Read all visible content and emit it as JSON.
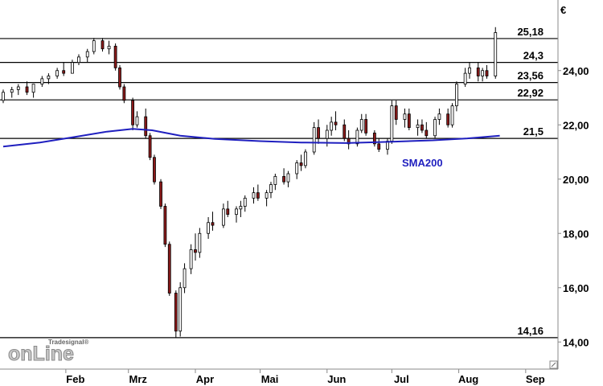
{
  "chart_data": {
    "type": "candlestick",
    "currency": "€",
    "y_range": [
      13.0,
      26.6
    ],
    "y_ticks": [
      "14,00",
      "16,00",
      "18,00",
      "20,00",
      "22,00",
      "24,00"
    ],
    "y_tick_values": [
      14,
      16,
      18,
      20,
      22,
      24
    ],
    "x_months": [
      {
        "label": "Feb",
        "date": "2020-02-01"
      },
      {
        "label": "Mrz",
        "date": "2020-03-01"
      },
      {
        "label": "Apr",
        "date": "2020-04-01"
      },
      {
        "label": "Mai",
        "date": "2020-05-01"
      },
      {
        "label": "Jun",
        "date": "2020-06-01"
      },
      {
        "label": "Jul",
        "date": "2020-07-01"
      },
      {
        "label": "Aug",
        "date": "2020-08-01"
      },
      {
        "label": "Sep",
        "date": "2020-09-01"
      }
    ],
    "x_range": [
      "2020-01-03",
      "2020-09-10"
    ],
    "levels": [
      {
        "label": "25,18",
        "value": 25.18
      },
      {
        "label": "24,3",
        "value": 24.3
      },
      {
        "label": "23,56",
        "value": 23.56
      },
      {
        "label": "22,92",
        "value": 22.92
      },
      {
        "label": "21,5",
        "value": 21.5
      },
      {
        "label": "14,16",
        "value": 14.16
      }
    ],
    "series": [
      {
        "name": "SMA200",
        "color": "#1f1fbf"
      }
    ],
    "sma200": [
      [
        "2020-01-03",
        21.2
      ],
      [
        "2020-01-20",
        21.35
      ],
      [
        "2020-02-05",
        21.55
      ],
      [
        "2020-02-20",
        21.75
      ],
      [
        "2020-03-03",
        21.85
      ],
      [
        "2020-03-12",
        21.8
      ],
      [
        "2020-03-25",
        21.6
      ],
      [
        "2020-04-10",
        21.48
      ],
      [
        "2020-05-01",
        21.4
      ],
      [
        "2020-05-20",
        21.35
      ],
      [
        "2020-06-10",
        21.33
      ],
      [
        "2020-07-01",
        21.38
      ],
      [
        "2020-07-20",
        21.43
      ],
      [
        "2020-08-05",
        21.5
      ],
      [
        "2020-08-20",
        21.6
      ]
    ],
    "candles": [
      [
        "2020-01-03",
        22.9,
        23.3,
        22.8,
        23.2
      ],
      [
        "2020-01-07",
        23.2,
        23.4,
        23.0,
        23.3
      ],
      [
        "2020-01-10",
        23.3,
        23.5,
        23.1,
        23.4
      ],
      [
        "2020-01-14",
        23.4,
        23.6,
        23.1,
        23.2
      ],
      [
        "2020-01-17",
        23.2,
        23.5,
        23.0,
        23.5
      ],
      [
        "2020-01-21",
        23.5,
        23.8,
        23.4,
        23.7
      ],
      [
        "2020-01-24",
        23.7,
        23.9,
        23.5,
        23.8
      ],
      [
        "2020-01-28",
        23.8,
        24.1,
        23.7,
        24.0
      ],
      [
        "2020-01-31",
        24.0,
        24.3,
        23.8,
        23.9
      ],
      [
        "2020-02-04",
        23.9,
        24.4,
        23.9,
        24.3
      ],
      [
        "2020-02-07",
        24.3,
        24.6,
        24.2,
        24.5
      ],
      [
        "2020-02-11",
        24.5,
        24.8,
        24.3,
        24.7
      ],
      [
        "2020-02-14",
        24.7,
        25.2,
        24.6,
        25.1
      ],
      [
        "2020-02-18",
        25.1,
        25.2,
        24.7,
        24.8
      ],
      [
        "2020-02-21",
        24.8,
        25.1,
        24.6,
        24.9
      ],
      [
        "2020-02-24",
        24.9,
        25.0,
        24.0,
        24.1
      ],
      [
        "2020-02-26",
        24.1,
        24.2,
        23.3,
        23.4
      ],
      [
        "2020-02-28",
        23.4,
        23.5,
        22.8,
        22.9
      ],
      [
        "2020-03-03",
        22.9,
        23.0,
        21.8,
        22.0
      ],
      [
        "2020-03-05",
        22.0,
        22.5,
        21.9,
        22.3
      ],
      [
        "2020-03-09",
        22.3,
        22.6,
        21.5,
        21.6
      ],
      [
        "2020-03-11",
        21.6,
        21.7,
        20.7,
        20.8
      ],
      [
        "2020-03-13",
        20.8,
        20.9,
        19.8,
        19.9
      ],
      [
        "2020-03-16",
        19.9,
        20.0,
        18.9,
        19.0
      ],
      [
        "2020-03-18",
        19.0,
        19.1,
        17.5,
        17.6
      ],
      [
        "2020-03-20",
        17.6,
        17.7,
        15.7,
        15.8
      ],
      [
        "2020-03-23",
        15.8,
        15.9,
        14.16,
        14.4
      ],
      [
        "2020-03-25",
        14.4,
        16.2,
        14.2,
        16.0
      ],
      [
        "2020-03-27",
        16.0,
        16.9,
        15.8,
        16.7
      ],
      [
        "2020-03-30",
        16.7,
        17.6,
        16.5,
        17.4
      ],
      [
        "2020-04-01",
        17.4,
        18.0,
        17.0,
        17.3
      ],
      [
        "2020-04-03",
        17.3,
        18.2,
        17.1,
        18.0
      ],
      [
        "2020-04-07",
        18.0,
        18.6,
        17.8,
        18.4
      ],
      [
        "2020-04-09",
        18.4,
        18.8,
        18.1,
        18.3
      ],
      [
        "2020-04-14",
        18.3,
        19.1,
        18.2,
        18.9
      ],
      [
        "2020-04-16",
        18.9,
        19.2,
        18.6,
        18.7
      ],
      [
        "2020-04-20",
        18.7,
        19.0,
        18.4,
        18.9
      ],
      [
        "2020-04-22",
        18.9,
        19.2,
        18.6,
        19.0
      ],
      [
        "2020-04-24",
        19.0,
        19.4,
        18.8,
        19.3
      ],
      [
        "2020-04-28",
        19.3,
        19.7,
        19.1,
        19.5
      ],
      [
        "2020-04-30",
        19.5,
        19.8,
        19.2,
        19.3
      ],
      [
        "2020-05-04",
        19.3,
        19.6,
        19.0,
        19.5
      ],
      [
        "2020-05-06",
        19.5,
        19.9,
        19.3,
        19.8
      ],
      [
        "2020-05-08",
        19.8,
        20.2,
        19.6,
        20.1
      ],
      [
        "2020-05-12",
        20.1,
        20.4,
        19.8,
        19.9
      ],
      [
        "2020-05-14",
        19.9,
        20.3,
        19.7,
        20.2
      ],
      [
        "2020-05-18",
        20.2,
        20.7,
        20.0,
        20.6
      ],
      [
        "2020-05-20",
        20.6,
        20.9,
        20.3,
        20.5
      ],
      [
        "2020-05-22",
        20.5,
        21.1,
        20.4,
        21.0
      ],
      [
        "2020-05-26",
        21.0,
        22.1,
        20.9,
        21.9
      ],
      [
        "2020-05-28",
        21.9,
        22.2,
        21.3,
        21.5
      ],
      [
        "2020-06-01",
        21.5,
        22.0,
        21.2,
        21.8
      ],
      [
        "2020-06-03",
        21.8,
        22.3,
        21.6,
        22.1
      ],
      [
        "2020-06-05",
        22.1,
        22.5,
        21.8,
        22.0
      ],
      [
        "2020-06-09",
        22.0,
        22.2,
        21.4,
        21.5
      ],
      [
        "2020-06-11",
        21.5,
        21.8,
        21.1,
        21.3
      ],
      [
        "2020-06-15",
        21.3,
        21.9,
        21.2,
        21.8
      ],
      [
        "2020-06-17",
        21.8,
        22.4,
        21.7,
        22.2
      ],
      [
        "2020-06-19",
        22.2,
        22.4,
        21.6,
        21.7
      ],
      [
        "2020-06-23",
        21.7,
        21.8,
        21.2,
        21.3
      ],
      [
        "2020-06-25",
        21.3,
        21.5,
        21.0,
        21.1
      ],
      [
        "2020-06-29",
        21.1,
        21.5,
        20.9,
        21.4
      ],
      [
        "2020-07-01",
        21.4,
        22.9,
        21.3,
        22.7
      ],
      [
        "2020-07-03",
        22.7,
        22.9,
        22.0,
        22.2
      ],
      [
        "2020-07-07",
        22.2,
        22.6,
        21.9,
        22.4
      ],
      [
        "2020-07-09",
        22.4,
        22.6,
        21.8,
        21.9
      ],
      [
        "2020-07-13",
        21.9,
        22.2,
        21.6,
        22.0
      ],
      [
        "2020-07-15",
        22.0,
        22.2,
        21.7,
        21.8
      ],
      [
        "2020-07-17",
        21.8,
        22.1,
        21.5,
        21.6
      ],
      [
        "2020-07-21",
        21.6,
        22.3,
        21.5,
        22.2
      ],
      [
        "2020-07-23",
        22.2,
        22.6,
        22.0,
        22.4
      ],
      [
        "2020-07-27",
        22.4,
        22.6,
        21.9,
        22.0
      ],
      [
        "2020-07-29",
        22.0,
        22.8,
        21.9,
        22.7
      ],
      [
        "2020-07-31",
        22.7,
        23.6,
        22.5,
        23.5
      ],
      [
        "2020-08-04",
        23.5,
        24.1,
        23.4,
        23.9
      ],
      [
        "2020-08-06",
        23.9,
        24.3,
        23.7,
        24.1
      ],
      [
        "2020-08-10",
        24.1,
        24.3,
        23.6,
        23.8
      ],
      [
        "2020-08-12",
        23.8,
        24.1,
        23.6,
        24.0
      ],
      [
        "2020-08-14",
        24.0,
        24.2,
        23.7,
        23.8
      ],
      [
        "2020-08-18",
        23.8,
        25.6,
        23.7,
        25.4
      ]
    ]
  },
  "branding": {
    "small_text": "Tradesignal®",
    "big_text": "onLine"
  }
}
